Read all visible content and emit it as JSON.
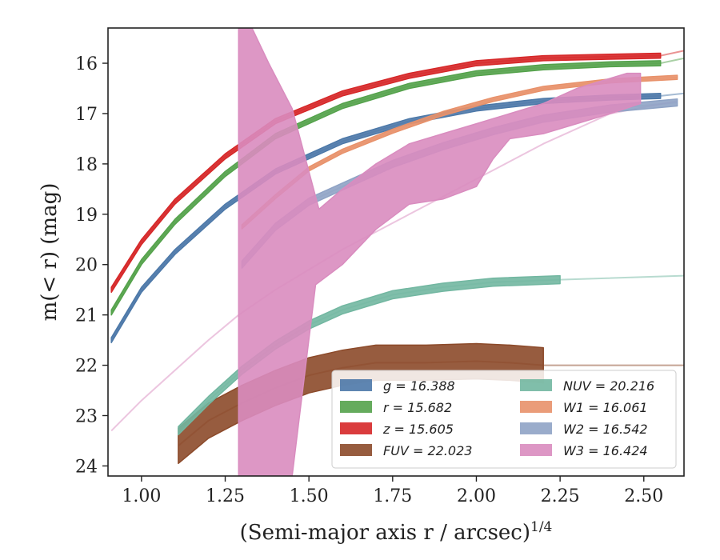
{
  "chart_data": {
    "type": "line",
    "title": "",
    "xlabel": "(Semi-major axis r / arcsec)",
    "xlabel_superscript": "1/4",
    "ylabel": "m(< r) (mag)",
    "xlim": [
      0.9,
      2.62
    ],
    "ylim": [
      24.2,
      15.3
    ],
    "y_inverted": true,
    "grid": false,
    "legend_position": "lower-right",
    "x_ticks": [
      1.0,
      1.25,
      1.5,
      1.75,
      2.0,
      2.25,
      2.5
    ],
    "x_tick_labels": [
      "1.00",
      "1.25",
      "1.50",
      "1.75",
      "2.00",
      "2.25",
      "2.50"
    ],
    "y_ticks": [
      16,
      17,
      18,
      19,
      20,
      21,
      22,
      23,
      24
    ],
    "y_tick_labels": [
      "16",
      "17",
      "18",
      "19",
      "20",
      "21",
      "22",
      "23",
      "24"
    ],
    "series": [
      {
        "name": "g = 16.388",
        "color": "#4c78a8",
        "x": [
          0.91,
          1.0,
          1.1,
          1.25,
          1.4,
          1.6,
          1.8,
          2.0,
          2.2,
          2.4,
          2.55
        ],
        "y": [
          21.5,
          20.5,
          19.75,
          18.85,
          18.15,
          17.55,
          17.15,
          16.9,
          16.75,
          16.68,
          16.65
        ],
        "band": 0.05,
        "faded": true,
        "faded_extra_x": [
          2.62
        ],
        "faded_extra_y": [
          16.6
        ]
      },
      {
        "name": "r = 15.682",
        "color": "#54a24b",
        "x": [
          0.91,
          1.0,
          1.1,
          1.25,
          1.4,
          1.6,
          1.8,
          2.0,
          2.2,
          2.4,
          2.55
        ],
        "y": [
          20.95,
          19.95,
          19.15,
          18.2,
          17.45,
          16.85,
          16.45,
          16.2,
          16.08,
          16.02,
          16.0
        ],
        "band": 0.05,
        "faded": true,
        "faded_extra_x": [
          2.62
        ],
        "faded_extra_y": [
          15.9
        ]
      },
      {
        "name": "z = 15.605",
        "color": "#d62728",
        "x": [
          0.91,
          1.0,
          1.1,
          1.25,
          1.4,
          1.6,
          1.8,
          2.0,
          2.2,
          2.4,
          2.55
        ],
        "y": [
          20.5,
          19.55,
          18.75,
          17.85,
          17.15,
          16.6,
          16.25,
          16.0,
          15.9,
          15.87,
          15.85
        ],
        "band": 0.05,
        "faded": true,
        "faded_extra_x": [
          2.62
        ],
        "faded_extra_y": [
          15.75
        ]
      },
      {
        "name": "FUV = 22.023",
        "color": "#8c4a2a",
        "x": [
          1.11,
          1.2,
          1.3,
          1.4,
          1.5,
          1.6,
          1.7,
          1.85,
          2.0,
          2.1,
          2.2
        ],
        "y": [
          23.6,
          23.1,
          22.75,
          22.45,
          22.2,
          22.05,
          21.95,
          21.95,
          21.92,
          21.95,
          22.0
        ],
        "band": 0.35,
        "faded": true,
        "faded_extra_x": [
          2.62
        ],
        "faded_extra_y": [
          22.0
        ]
      },
      {
        "name": "NUV = 20.216",
        "color": "#72b7a1",
        "x": [
          1.11,
          1.2,
          1.3,
          1.4,
          1.5,
          1.6,
          1.75,
          1.9,
          2.05,
          2.25
        ],
        "y": [
          23.3,
          22.7,
          22.1,
          21.6,
          21.2,
          20.9,
          20.6,
          20.45,
          20.35,
          20.3
        ],
        "band": 0.08,
        "faded": true,
        "faded_extra_x": [
          2.62
        ],
        "faded_extra_y": [
          20.22
        ]
      },
      {
        "name": "W1 = 16.061",
        "color": "#e8916a",
        "x": [
          1.3,
          1.4,
          1.5,
          1.6,
          1.75,
          1.9,
          2.05,
          2.2,
          2.4,
          2.6
        ],
        "y": [
          19.25,
          18.65,
          18.1,
          17.75,
          17.35,
          17.0,
          16.72,
          16.5,
          16.35,
          16.28
        ],
        "band": 0.04,
        "faded": true,
        "faded_extra_x": [],
        "faded_extra_y": []
      },
      {
        "name": "W2 = 16.542",
        "color": "#8fa3c5",
        "x": [
          1.3,
          1.4,
          1.5,
          1.6,
          1.75,
          1.9,
          2.05,
          2.2,
          2.4,
          2.6
        ],
        "y": [
          20.0,
          19.25,
          18.75,
          18.45,
          18.0,
          17.65,
          17.35,
          17.1,
          16.9,
          16.78
        ],
        "band": 0.07,
        "faded": true,
        "faded_extra_x": [],
        "faded_extra_y": []
      },
      {
        "name": "W3 = 16.424",
        "color": "#d98cbf",
        "band_polygon": true,
        "upper_x": [
          1.29,
          1.33,
          1.38,
          1.45,
          1.53,
          1.6,
          1.7,
          1.8,
          1.9,
          2.0,
          2.1,
          2.2,
          2.3,
          2.4,
          2.45,
          2.49
        ],
        "upper_y": [
          15.3,
          15.3,
          16.0,
          16.9,
          18.9,
          18.5,
          18.0,
          17.6,
          17.4,
          17.2,
          17.0,
          16.8,
          16.5,
          16.3,
          16.2,
          16.2
        ],
        "lower_x": [
          1.29,
          1.45,
          1.52,
          1.6,
          1.7,
          1.8,
          1.9,
          2.0,
          2.05,
          2.1,
          2.2,
          2.3,
          2.4,
          2.49
        ],
        "lower_y": [
          24.2,
          24.2,
          20.4,
          20.0,
          19.3,
          18.8,
          18.7,
          18.45,
          17.9,
          17.5,
          17.4,
          17.2,
          17.0,
          16.8
        ],
        "faded": true,
        "faded_x": [
          0.91,
          1.0,
          1.1,
          1.2,
          1.29,
          1.4,
          1.5,
          1.6,
          1.8,
          2.0,
          2.2,
          2.4,
          2.6
        ],
        "faded_y": [
          23.3,
          22.7,
          22.1,
          21.5,
          21.0,
          20.5,
          20.1,
          19.7,
          19.0,
          18.3,
          17.6,
          17.0,
          16.75
        ]
      }
    ]
  }
}
